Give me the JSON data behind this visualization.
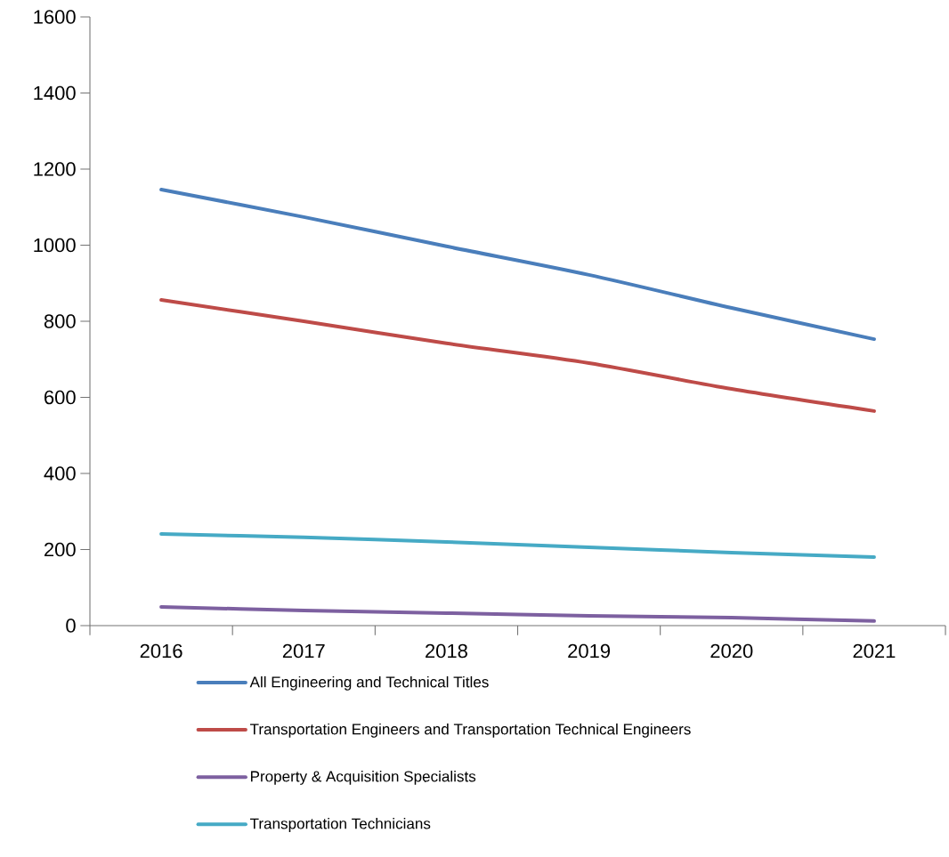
{
  "chart_data": {
    "type": "line",
    "categories": [
      "2016",
      "2017",
      "2018",
      "2019",
      "2020",
      "2021"
    ],
    "series": [
      {
        "name": "All Engineering and Technical Titles",
        "color": "#4a7ebb",
        "values": [
          1146,
          1074,
          997,
          922,
          835,
          753
        ]
      },
      {
        "name": "Transportation Engineers and Transportation Technical Engineers",
        "color": "#be4b48",
        "values": [
          856,
          800,
          742,
          690,
          622,
          564
        ]
      },
      {
        "name": "Property & Acquisition Specialists",
        "color": "#7d60a0",
        "values": [
          49,
          40,
          33,
          26,
          21,
          12
        ]
      },
      {
        "name": "Transportation Technicians",
        "color": "#46aac5",
        "values": [
          241,
          232,
          220,
          206,
          192,
          180
        ]
      }
    ],
    "ylim": [
      0,
      1600
    ],
    "yticks": [
      0,
      200,
      400,
      600,
      800,
      1000,
      1200,
      1400,
      1600
    ],
    "grid": false,
    "legend": "bottom",
    "marker": "none",
    "line_style": "solid"
  }
}
